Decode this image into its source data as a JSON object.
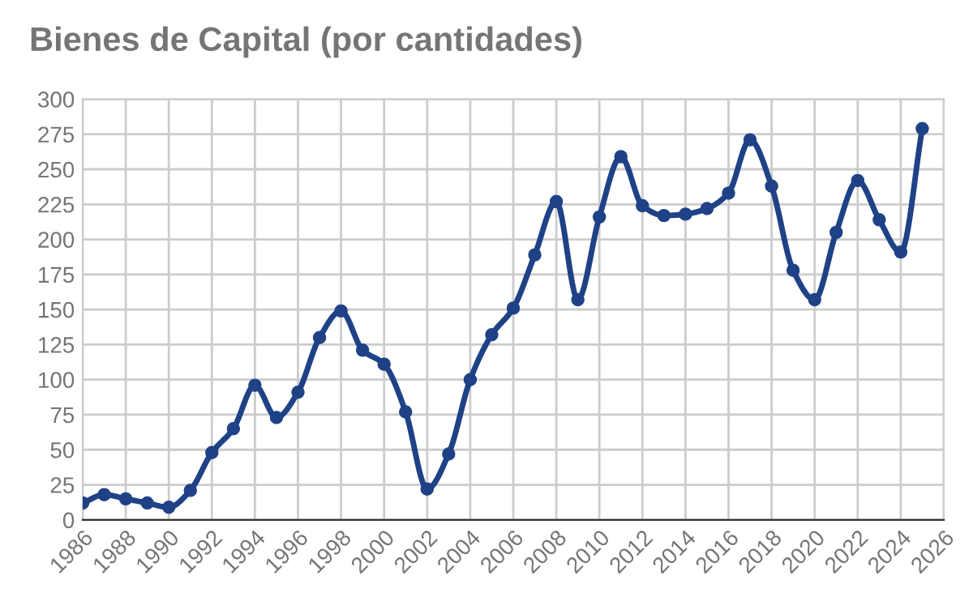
{
  "chart_data": {
    "type": "line",
    "title": "Bienes de Capital (por cantidades)",
    "x": [
      1986,
      1987,
      1988,
      1989,
      1990,
      1991,
      1992,
      1993,
      1994,
      1995,
      1996,
      1997,
      1998,
      1999,
      2000,
      2001,
      2002,
      2003,
      2004,
      2005,
      2006,
      2007,
      2008,
      2009,
      2010,
      2011,
      2012,
      2013,
      2014,
      2015,
      2016,
      2017,
      2018,
      2019,
      2020,
      2021,
      2022,
      2023,
      2024,
      2025
    ],
    "series": [
      {
        "color": "#1f4287",
        "values": [
          12,
          18,
          15,
          12,
          9,
          21,
          48,
          65,
          96,
          73,
          91,
          130,
          149,
          121,
          111,
          77,
          22,
          47,
          100,
          132,
          151,
          189,
          227,
          157,
          216,
          259,
          224,
          217,
          218,
          222,
          233,
          271,
          238,
          178,
          157,
          205,
          242,
          214,
          191,
          279
        ]
      }
    ],
    "xlim": [
      1986,
      2026
    ],
    "xticks": [
      1986,
      1988,
      1990,
      1992,
      1994,
      1996,
      1998,
      2000,
      2002,
      2004,
      2006,
      2008,
      2010,
      2012,
      2014,
      2016,
      2018,
      2020,
      2022,
      2024,
      2026
    ],
    "ylim": [
      0,
      300
    ],
    "yticks": [
      0,
      25,
      50,
      75,
      100,
      125,
      150,
      175,
      200,
      225,
      250,
      275,
      300
    ],
    "grid": true,
    "marker": "circle",
    "line_style": "solid",
    "legend": false
  }
}
